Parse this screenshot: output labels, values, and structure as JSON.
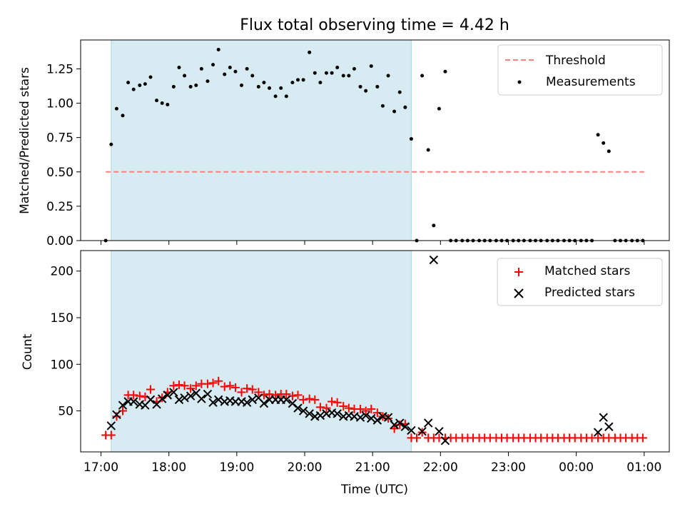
{
  "chart_data": [
    {
      "type": "scatter",
      "title": "Flux total observing time = 4.42 h",
      "xlabel": "",
      "ylabel": "Matched/Predicted stars",
      "ylim": [
        0,
        1.46
      ],
      "yticks": [
        "0.00",
        "0.25",
        "0.50",
        "0.75",
        "1.00",
        "1.25"
      ],
      "xticks": [
        "17:00",
        "18:00",
        "19:00",
        "20:00",
        "21:00",
        "22:00",
        "23:00",
        "00:00",
        "01:00"
      ],
      "xlim_hours": [
        16.7,
        25.37
      ],
      "shaded_span_hours": [
        17.15,
        21.57
      ],
      "legend": {
        "position": "top-right"
      },
      "threshold": {
        "name": "Threshold",
        "value": 0.5,
        "x_range_hours": [
          17.07,
          25.0
        ],
        "color": "#ff7f7f",
        "style": "dashed"
      },
      "series": [
        {
          "name": "Measurements",
          "color": "#000000",
          "x_hours": [
            17.07,
            17.15,
            17.23,
            17.32,
            17.4,
            17.48,
            17.57,
            17.65,
            17.73,
            17.82,
            17.9,
            17.98,
            18.07,
            18.15,
            18.23,
            18.32,
            18.4,
            18.48,
            18.57,
            18.65,
            18.73,
            18.82,
            18.9,
            18.98,
            19.07,
            19.15,
            19.23,
            19.32,
            19.4,
            19.48,
            19.57,
            19.65,
            19.73,
            19.82,
            19.9,
            19.98,
            20.07,
            20.15,
            20.23,
            20.32,
            20.4,
            20.48,
            20.57,
            20.65,
            20.73,
            20.82,
            20.9,
            20.98,
            21.07,
            21.15,
            21.23,
            21.32,
            21.4,
            21.48,
            21.57,
            21.65,
            21.73,
            21.82,
            21.9,
            21.98,
            22.07,
            22.15,
            22.23,
            22.32,
            22.4,
            22.48,
            22.57,
            22.65,
            22.73,
            22.82,
            22.9,
            22.98,
            23.07,
            23.15,
            23.23,
            23.32,
            23.4,
            23.48,
            23.57,
            23.65,
            23.73,
            23.82,
            23.9,
            23.98,
            24.07,
            24.15,
            24.23,
            24.32,
            24.4,
            24.48,
            24.57,
            24.65,
            24.73,
            24.82,
            24.9,
            24.98
          ],
          "values": [
            0.0,
            0.7,
            0.96,
            0.91,
            1.15,
            1.1,
            1.13,
            1.14,
            1.19,
            1.02,
            1.0,
            0.99,
            1.12,
            1.26,
            1.2,
            1.12,
            1.13,
            1.25,
            1.16,
            1.28,
            1.39,
            1.21,
            1.26,
            1.23,
            1.13,
            1.25,
            1.2,
            1.12,
            1.15,
            1.11,
            1.05,
            1.11,
            1.05,
            1.15,
            1.17,
            1.17,
            1.37,
            1.22,
            1.15,
            1.22,
            1.22,
            1.26,
            1.2,
            1.2,
            1.25,
            1.12,
            1.09,
            1.27,
            1.12,
            0.98,
            1.2,
            0.94,
            1.08,
            0.97,
            0.74,
            0.0,
            1.2,
            0.66,
            0.11,
            0.96,
            1.23,
            0.0,
            0.0,
            0.0,
            0.0,
            0.0,
            0.0,
            0.0,
            0.0,
            0.0,
            0.0,
            0.0,
            0.0,
            0.0,
            0.0,
            0.0,
            0.0,
            0.0,
            0.0,
            0.0,
            0.0,
            0.0,
            0.0,
            0.0,
            0.0,
            0.0,
            0.0,
            0.77,
            0.71,
            0.65,
            0.0,
            0.0,
            0.0,
            0.0,
            0.0,
            0.0
          ]
        }
      ]
    },
    {
      "type": "scatter",
      "title": "",
      "xlabel": "Time (UTC)",
      "ylabel": "Count",
      "ylim": [
        6,
        222
      ],
      "yticks": [
        "50",
        "100",
        "150",
        "200"
      ],
      "xticks": [
        "17:00",
        "18:00",
        "19:00",
        "20:00",
        "21:00",
        "22:00",
        "23:00",
        "00:00",
        "01:00"
      ],
      "xlim_hours": [
        16.7,
        25.37
      ],
      "shaded_span_hours": [
        17.15,
        21.57
      ],
      "legend": {
        "position": "top-right"
      },
      "series": [
        {
          "name": "Matched stars",
          "marker": "plus",
          "color": "#ff0000",
          "x_hours": [
            17.07,
            17.15,
            17.23,
            17.32,
            17.4,
            17.48,
            17.57,
            17.65,
            17.73,
            17.82,
            17.9,
            17.98,
            18.07,
            18.15,
            18.23,
            18.32,
            18.4,
            18.48,
            18.57,
            18.65,
            18.73,
            18.82,
            18.9,
            18.98,
            19.07,
            19.15,
            19.23,
            19.32,
            19.4,
            19.48,
            19.57,
            19.65,
            19.73,
            19.82,
            19.9,
            19.98,
            20.07,
            20.15,
            20.23,
            20.32,
            20.4,
            20.48,
            20.57,
            20.65,
            20.73,
            20.82,
            20.9,
            20.98,
            21.07,
            21.15,
            21.23,
            21.32,
            21.4,
            21.48,
            21.57,
            21.65,
            21.73,
            21.82,
            21.9,
            21.98,
            22.07,
            22.15,
            22.23,
            22.32,
            22.4,
            22.48,
            22.57,
            22.65,
            22.73,
            22.82,
            22.9,
            22.98,
            23.07,
            23.15,
            23.23,
            23.32,
            23.4,
            23.48,
            23.57,
            23.65,
            23.73,
            23.82,
            23.9,
            23.98,
            24.07,
            24.15,
            24.23,
            24.32,
            24.4,
            24.48,
            24.57,
            24.65,
            24.73,
            24.82,
            24.9,
            24.98
          ],
          "values": [
            24,
            24,
            44,
            50,
            67,
            67,
            66,
            65,
            73,
            60,
            64,
            70,
            77,
            78,
            77,
            74,
            77,
            79,
            79,
            80,
            82,
            76,
            77,
            75,
            70,
            74,
            73,
            70,
            67,
            68,
            67,
            68,
            68,
            66,
            67,
            62,
            63,
            62,
            54,
            53,
            60,
            59,
            55,
            53,
            52,
            52,
            50,
            52,
            48,
            44,
            42,
            31,
            35,
            36,
            21,
            21,
            27,
            21,
            21,
            21,
            21,
            21,
            21,
            21,
            21,
            21,
            21,
            21,
            21,
            21,
            21,
            21,
            21,
            21,
            21,
            21,
            21,
            21,
            21,
            21,
            21,
            21,
            21,
            21,
            21,
            21,
            21,
            21,
            21,
            21,
            21,
            21,
            21,
            21,
            21,
            21
          ]
        },
        {
          "name": "Predicted stars",
          "marker": "x",
          "color": "#000000",
          "x_hours": [
            17.15,
            17.23,
            17.32,
            17.4,
            17.48,
            17.57,
            17.65,
            17.73,
            17.82,
            17.9,
            17.98,
            18.07,
            18.15,
            18.23,
            18.32,
            18.4,
            18.48,
            18.57,
            18.65,
            18.73,
            18.82,
            18.9,
            18.98,
            19.07,
            19.15,
            19.23,
            19.32,
            19.4,
            19.48,
            19.57,
            19.65,
            19.73,
            19.82,
            19.9,
            19.98,
            20.07,
            20.15,
            20.23,
            20.32,
            20.4,
            20.48,
            20.57,
            20.65,
            20.73,
            20.82,
            20.9,
            20.98,
            21.07,
            21.15,
            21.23,
            21.32,
            21.4,
            21.48,
            21.57,
            21.73,
            21.82,
            21.9,
            21.98,
            22.07,
            24.32,
            24.4,
            24.48
          ],
          "values": [
            34,
            46,
            56,
            60,
            60,
            57,
            56,
            62,
            57,
            63,
            67,
            70,
            62,
            64,
            66,
            69,
            63,
            68,
            59,
            62,
            60,
            61,
            60,
            60,
            59,
            62,
            64,
            58,
            62,
            62,
            62,
            62,
            58,
            53,
            50,
            47,
            44,
            45,
            47,
            48,
            47,
            44,
            45,
            44,
            43,
            45,
            42,
            40,
            44,
            43,
            35,
            37,
            33,
            29,
            28,
            37,
            212,
            28,
            18,
            27,
            43,
            33
          ]
        }
      ]
    }
  ]
}
